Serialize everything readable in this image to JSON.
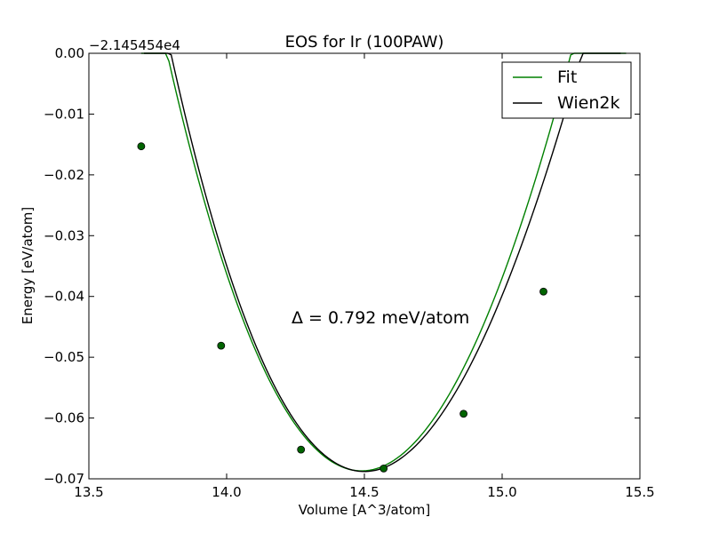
{
  "chart_data": {
    "type": "line",
    "title": "EOS for Ir (100PAW)",
    "xlabel": "Volume [A^3/atom]",
    "ylabel": "Energy [eV/atom]",
    "y_offset_label": "−2.145454e4",
    "xlim": [
      13.5,
      15.5
    ],
    "ylim": [
      -0.07,
      0.0
    ],
    "x_ticks": [
      13.5,
      14.0,
      14.5,
      15.0,
      15.5
    ],
    "x_tick_labels": [
      "13.5",
      "14.0",
      "14.5",
      "15.0",
      "15.5"
    ],
    "y_ticks": [
      0.0,
      -0.01,
      -0.02,
      -0.03,
      -0.04,
      -0.05,
      -0.06,
      -0.07
    ],
    "y_tick_labels": [
      "0.00",
      "−0.01",
      "−0.02",
      "−0.03",
      "−0.04",
      "−0.05",
      "−0.06",
      "−0.07"
    ],
    "grid": false,
    "legend_position": "top-right",
    "annotation": "Δ = 0.792 meV/atom",
    "series": [
      {
        "name": "Fit",
        "type": "line",
        "color": "#008000",
        "curve": {
          "x_min": 13.69,
          "x_max": 15.45,
          "vmin": 14.49,
          "emin": -0.0687,
          "a": 0.1287,
          "b": -0.013
        }
      },
      {
        "name": "Wien2k",
        "type": "line",
        "color": "#000000",
        "curve": {
          "x_min": 13.7,
          "x_max": 15.43,
          "vmin": 14.5,
          "emin": -0.0688,
          "a": 0.1257,
          "b": -0.0196
        }
      },
      {
        "type": "scatter",
        "color": "#006400",
        "points": [
          {
            "x": 13.69,
            "y": -0.0153
          },
          {
            "x": 13.98,
            "y": -0.0481
          },
          {
            "x": 14.27,
            "y": -0.0652
          },
          {
            "x": 14.57,
            "y": -0.0683
          },
          {
            "x": 14.86,
            "y": -0.0593
          },
          {
            "x": 15.15,
            "y": -0.0392
          }
        ]
      }
    ]
  }
}
